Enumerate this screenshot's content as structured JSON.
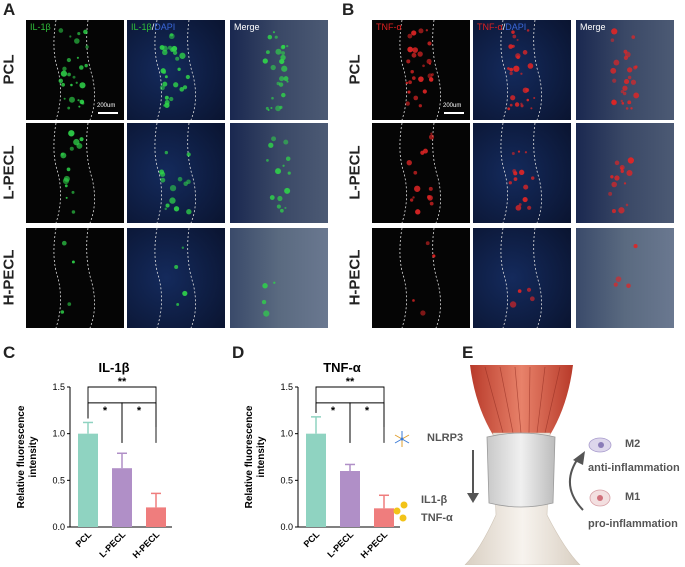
{
  "panels": {
    "A": {
      "label": "A",
      "columns": [
        {
          "caption_parts": [
            {
              "text": "IL-1β",
              "color": "#2fbf3a"
            }
          ]
        },
        {
          "caption_parts": [
            {
              "text": "IL-1β",
              "color": "#2fbf3a"
            },
            {
              "text": "/",
              "color": "#ffffff"
            },
            {
              "text": "DAPI",
              "color": "#3a67d9"
            }
          ]
        },
        {
          "caption_parts": [
            {
              "text": "Merge",
              "color": "#ffffff"
            }
          ]
        }
      ],
      "rows": [
        "PCL",
        "L-PECL",
        "H-PECL"
      ],
      "scale_text": "200um"
    },
    "B": {
      "label": "B",
      "columns": [
        {
          "caption_parts": [
            {
              "text": "TNF-α",
              "color": "#e02020"
            }
          ]
        },
        {
          "caption_parts": [
            {
              "text": "TNF-α",
              "color": "#e02020"
            },
            {
              "text": "/",
              "color": "#ffffff"
            },
            {
              "text": "DAPI",
              "color": "#3a67d9"
            }
          ]
        },
        {
          "caption_parts": [
            {
              "text": "Merge",
              "color": "#ffffff"
            }
          ]
        }
      ],
      "rows": [
        "PCL",
        "L-PECL",
        "H-PECL"
      ],
      "scale_text": "200um"
    },
    "C": {
      "label": "C"
    },
    "D": {
      "label": "D"
    },
    "E": {
      "label": "E",
      "nlrp3": "NLRP3",
      "il1b": "IL1-β",
      "tnfa": "TNF-α",
      "m2": "M2",
      "m2_desc": "anti-inflammation",
      "m1": "M1",
      "m1_desc": "pro-inflammation"
    }
  },
  "chart_data": [
    {
      "type": "bar",
      "title": "IL-1β",
      "ylabel": "Relative fluorescence intensity",
      "categories": [
        "PCL",
        "L-PECL",
        "H-PECL"
      ],
      "values": [
        1.0,
        0.63,
        0.21
      ],
      "errors": [
        0.12,
        0.16,
        0.15
      ],
      "colors": [
        "#8fd3c1",
        "#b08fc7",
        "#ef7d7d"
      ],
      "ylim": [
        0,
        1.5
      ],
      "yticks": [
        "0.0",
        "0.5",
        "1.0",
        "1.5"
      ],
      "significance": [
        {
          "from": 0,
          "to": 1,
          "mark": "*"
        },
        {
          "from": 1,
          "to": 2,
          "mark": "*"
        },
        {
          "from": 0,
          "to": 2,
          "mark": "**"
        }
      ]
    },
    {
      "type": "bar",
      "title": "TNF-α",
      "ylabel": "Relative fluorescence intensity",
      "categories": [
        "PCL",
        "L-PECL",
        "H-PECL"
      ],
      "values": [
        1.0,
        0.6,
        0.2
      ],
      "errors": [
        0.18,
        0.07,
        0.14
      ],
      "colors": [
        "#8fd3c1",
        "#b08fc7",
        "#ef7d7d"
      ],
      "ylim": [
        0,
        1.5
      ],
      "yticks": [
        "0.0",
        "0.5",
        "1.0",
        "1.5"
      ],
      "significance": [
        {
          "from": 0,
          "to": 1,
          "mark": "*"
        },
        {
          "from": 1,
          "to": 2,
          "mark": "*"
        },
        {
          "from": 0,
          "to": 2,
          "mark": "**"
        }
      ]
    }
  ]
}
